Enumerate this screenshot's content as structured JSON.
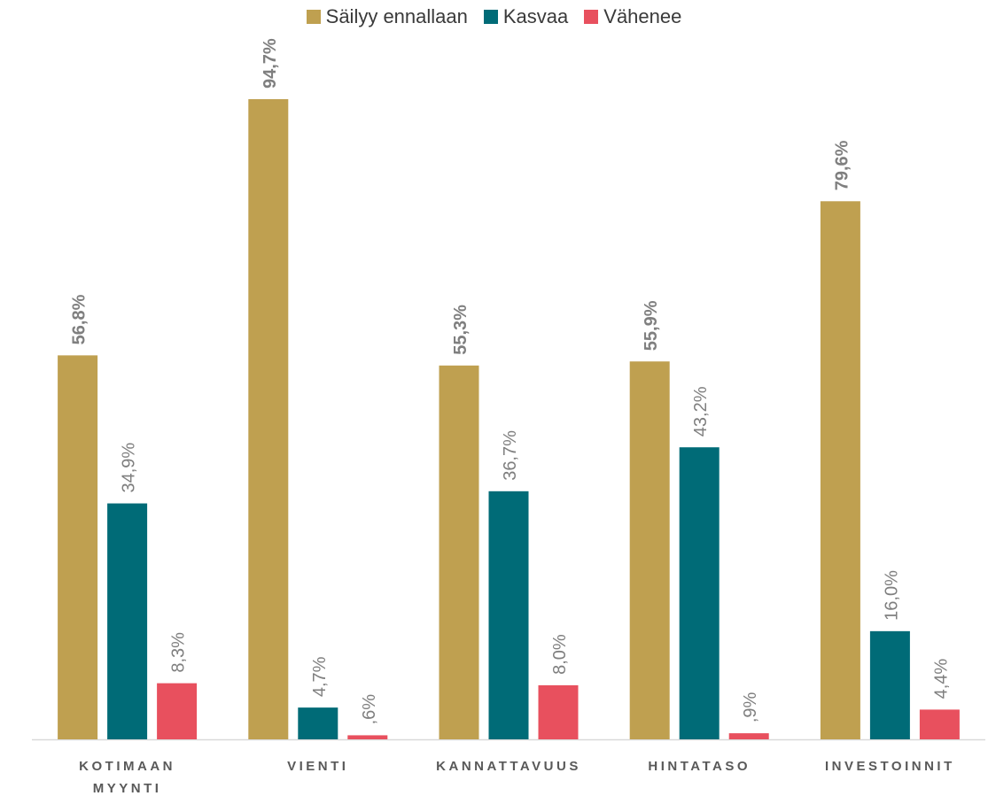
{
  "chart_data": {
    "type": "bar",
    "categories": [
      "KOTIMAAN\nMYYNTI",
      "VIENTI",
      "KANNATTAVUUS",
      "HINTATASO",
      "INVESTOINNIT"
    ],
    "series": [
      {
        "name": "Säilyy ennallaan",
        "color": "#BFA050",
        "values": [
          56.8,
          94.7,
          55.3,
          55.9,
          79.6
        ],
        "labels": [
          "56,8%",
          "94,7%",
          "55,3%",
          "55,9%",
          "79,6%"
        ]
      },
      {
        "name": "Kasvaa",
        "color": "#006B77",
        "values": [
          34.9,
          4.7,
          36.7,
          43.2,
          16.0
        ],
        "labels": [
          "34,9%",
          "4,7%",
          "36,7%",
          "43,2%",
          "16,0%"
        ]
      },
      {
        "name": "Vähenee",
        "color": "#E8505E",
        "values": [
          8.3,
          0.6,
          8.0,
          0.9,
          4.4
        ],
        "labels": [
          "8,3%",
          ",6%",
          "8,0%",
          ",9%",
          "4,4%"
        ]
      }
    ],
    "ylim": [
      0,
      100
    ],
    "grid": false,
    "legend_position": "top-center",
    "label_colors": {
      "bold": "#7F7F7F",
      "normal": "#7F7F7F"
    }
  }
}
